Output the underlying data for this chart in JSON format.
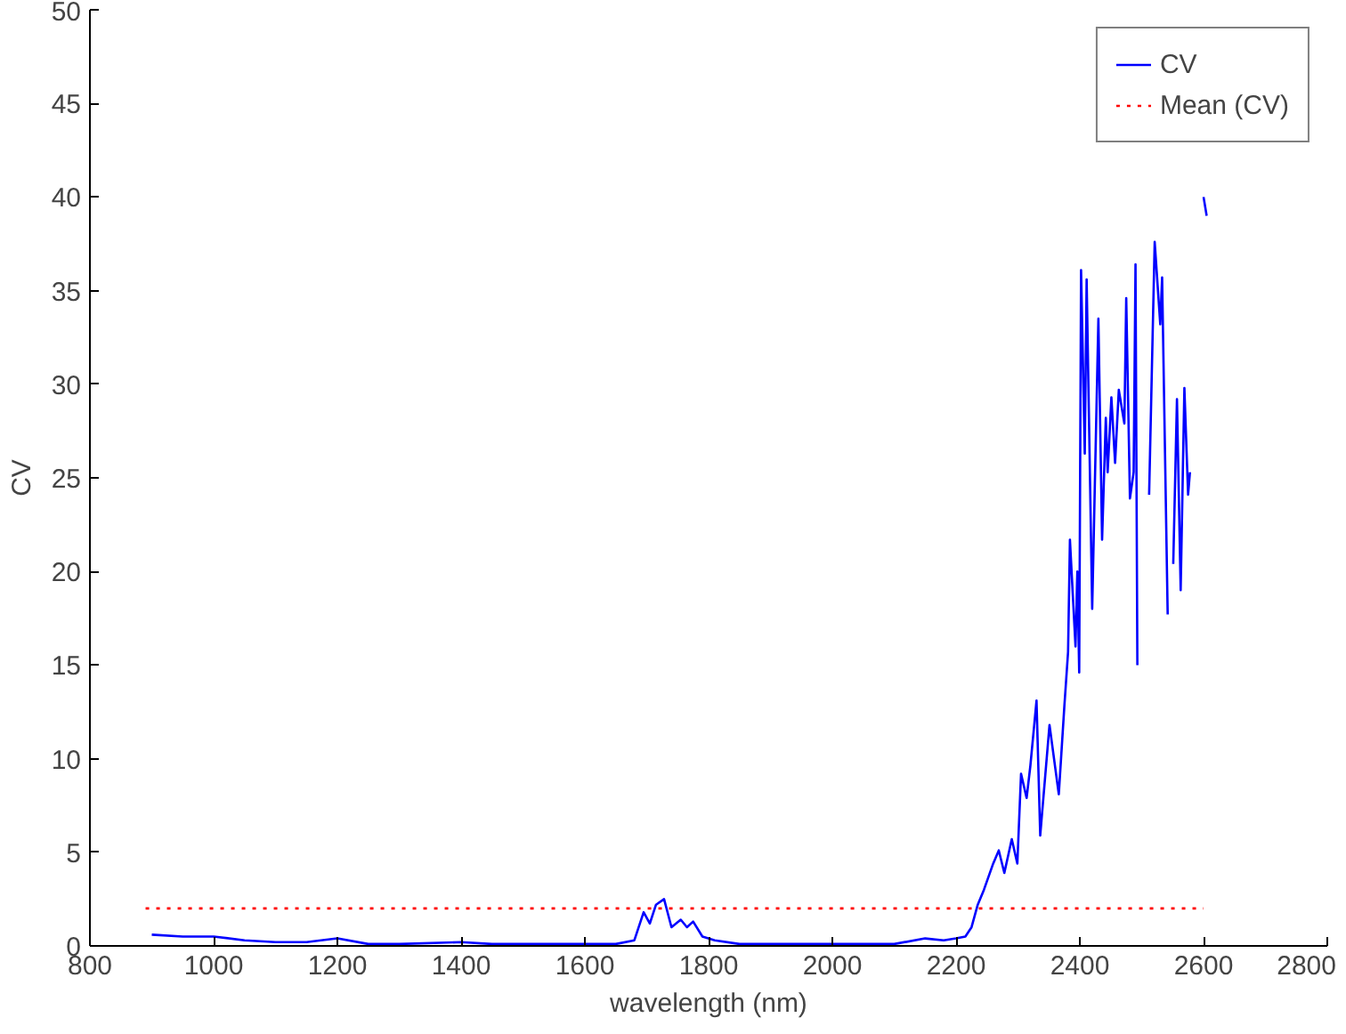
{
  "chart_data": {
    "type": "line",
    "xlabel": "wavelength (nm)",
    "ylabel": "CV",
    "xlim": [
      800,
      2800
    ],
    "ylim": [
      0,
      50
    ],
    "xticks": [
      800,
      1000,
      1200,
      1400,
      1600,
      1800,
      2000,
      2200,
      2400,
      2600,
      2800
    ],
    "yticks": [
      0,
      5,
      10,
      15,
      20,
      25,
      30,
      35,
      40,
      45,
      50
    ],
    "grid": false,
    "legend": "top right",
    "series": [
      {
        "name": "CV",
        "color": "#0000ff",
        "line_style": "solid",
        "x": [
          900,
          950,
          1000,
          1050,
          1100,
          1150,
          1200,
          1250,
          1300,
          1400,
          1450,
          1500,
          1600,
          1650,
          1680,
          1695,
          1705,
          1715,
          1728,
          1740,
          1755,
          1765,
          1775,
          1790,
          1810,
          1850,
          1900,
          2000,
          2100,
          2150,
          2180,
          2200,
          2215,
          2225,
          2235,
          2245,
          2260,
          2269,
          2278,
          2290,
          2299,
          2305,
          2314,
          2320,
          2330,
          2336,
          2351,
          2366,
          2375,
          2381,
          2384,
          2393,
          2396,
          2399,
          2402,
          2408,
          2411,
          2420,
          2430,
          2436,
          2442,
          2445,
          2451,
          2457,
          2463,
          2472,
          2475,
          2481,
          2487,
          2490,
          2493,
          2499,
          2512,
          2521,
          2530,
          2533,
          2542,
          2545,
          2551,
          2557,
          2563,
          2569,
          2575,
          2578,
          2584,
          2597,
          2600,
          2605
        ],
        "values": [
          0.6,
          0.5,
          0.5,
          0.3,
          0.2,
          0.2,
          0.4,
          0.1,
          0.1,
          0.2,
          0.1,
          0.1,
          0.1,
          0.1,
          0.3,
          1.8,
          1.2,
          2.2,
          2.5,
          1.0,
          1.4,
          1.0,
          1.3,
          0.5,
          0.3,
          0.1,
          0.1,
          0.1,
          0.1,
          0.4,
          0.3,
          0.4,
          0.5,
          1.0,
          2.2,
          3.0,
          4.4,
          5.1,
          3.9,
          5.7,
          4.4,
          9.2,
          7.9,
          9.6,
          13.1,
          5.9,
          11.8,
          8.1,
          12.8,
          15.7,
          21.7,
          16.0,
          20.0,
          14.6,
          36.1,
          26.3,
          35.6,
          18.0,
          33.5,
          21.7,
          28.2,
          25.3,
          29.3,
          25.8,
          29.7,
          27.9,
          34.6,
          23.9,
          25.3,
          36.4,
          15.0,
          null,
          24.1,
          37.6,
          33.2,
          35.7,
          17.7,
          null,
          20.4,
          29.2,
          19.0,
          29.8,
          24.1,
          25.3,
          null,
          null,
          40.0,
          39.0
        ]
      },
      {
        "name": "Mean (CV)",
        "color": "#ff0000",
        "line_style": "dotted",
        "x": [
          890,
          2600
        ],
        "values": [
          2.0,
          2.0
        ]
      }
    ]
  }
}
